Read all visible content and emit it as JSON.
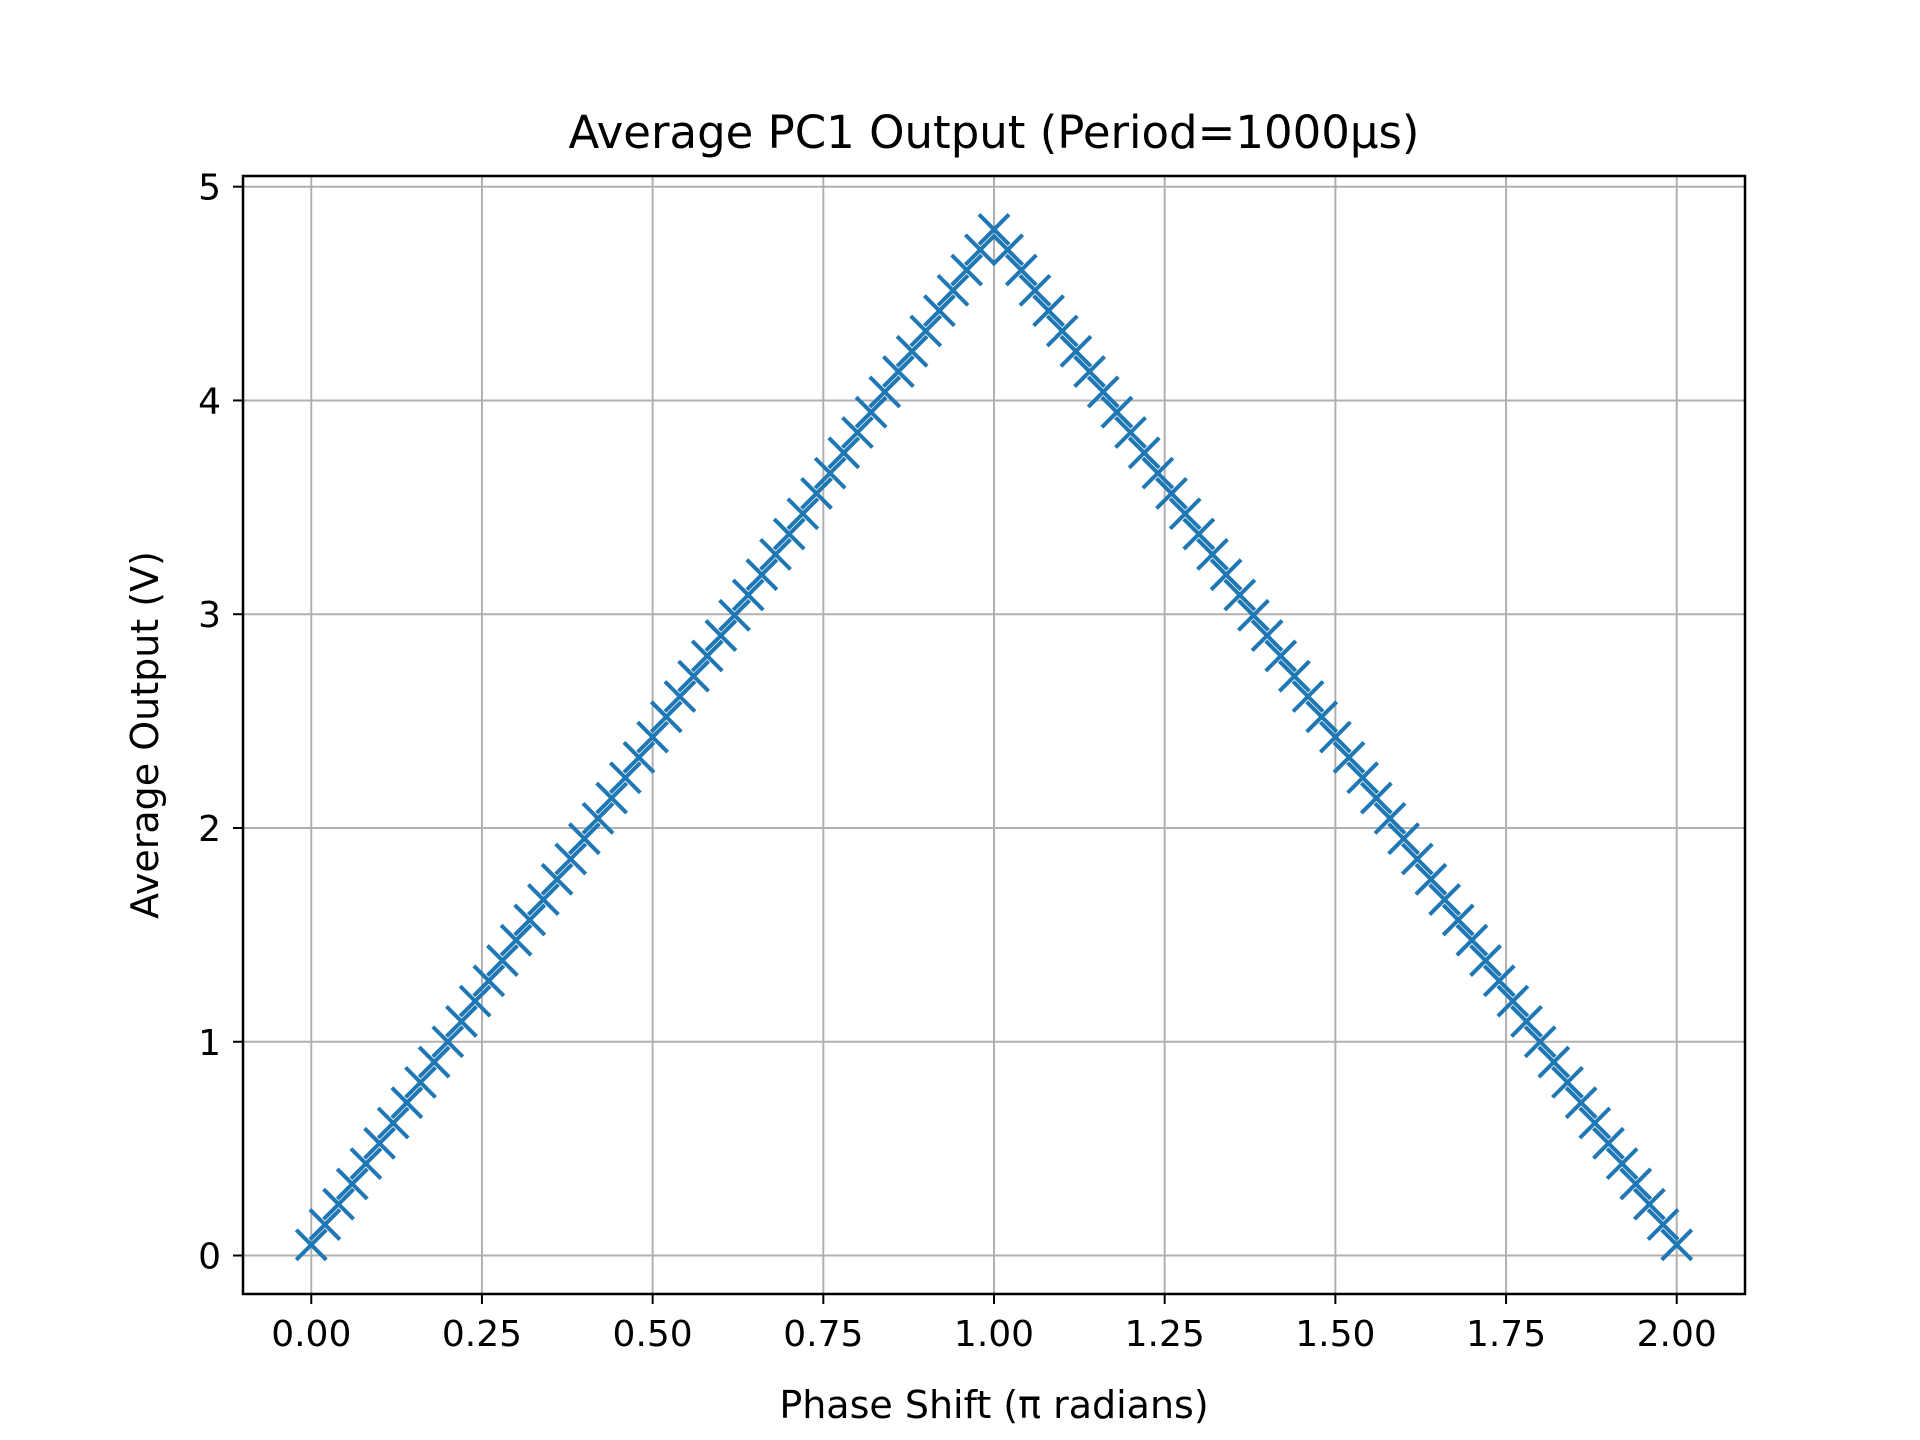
{
  "chart_data": {
    "type": "scatter",
    "title": "Average PC1 Output (Period=1000μs)",
    "xlabel": "Phase Shift (π radians)",
    "ylabel": "Average Output (V)",
    "xlim": [
      -0.1,
      2.1
    ],
    "ylim": [
      -0.18,
      5.05
    ],
    "xticks": [
      0.0,
      0.25,
      0.5,
      0.75,
      1.0,
      1.25,
      1.5,
      1.75,
      2.0
    ],
    "xtick_labels": [
      "0.00",
      "0.25",
      "0.50",
      "0.75",
      "1.00",
      "1.25",
      "1.50",
      "1.75",
      "2.00"
    ],
    "yticks": [
      0,
      1,
      2,
      3,
      4,
      5
    ],
    "ytick_labels": [
      "0",
      "1",
      "2",
      "3",
      "4",
      "5"
    ],
    "grid": true,
    "marker": "x",
    "color": "#1f77b4",
    "series": [
      {
        "x": [
          0.0,
          0.02,
          0.04,
          0.06,
          0.08,
          0.1,
          0.12,
          0.14,
          0.16,
          0.18,
          0.2,
          0.22,
          0.24,
          0.26,
          0.28,
          0.3,
          0.32,
          0.34,
          0.36,
          0.38,
          0.4,
          0.42,
          0.44,
          0.46,
          0.48,
          0.5,
          0.52,
          0.54,
          0.56,
          0.58,
          0.6,
          0.62,
          0.64,
          0.66,
          0.68,
          0.7,
          0.72,
          0.74,
          0.76,
          0.78,
          0.8,
          0.82,
          0.84,
          0.86,
          0.88,
          0.9,
          0.92,
          0.94,
          0.96,
          0.98,
          1.0,
          1.02,
          1.04,
          1.06,
          1.08,
          1.1,
          1.12,
          1.14,
          1.16,
          1.18,
          1.2,
          1.22,
          1.24,
          1.26,
          1.28,
          1.3,
          1.32,
          1.34,
          1.36,
          1.38,
          1.4,
          1.42,
          1.44,
          1.46,
          1.48,
          1.5,
          1.52,
          1.54,
          1.56,
          1.58,
          1.6,
          1.62,
          1.64,
          1.66,
          1.68,
          1.7,
          1.72,
          1.74,
          1.76,
          1.78,
          1.8,
          1.82,
          1.84,
          1.86,
          1.88,
          1.9,
          1.92,
          1.94,
          1.96,
          1.98,
          2.0
        ],
        "y": [
          0.05,
          0.145,
          0.24,
          0.335,
          0.43,
          0.525,
          0.62,
          0.715,
          0.81,
          0.905,
          1.0,
          1.095,
          1.19,
          1.285,
          1.38,
          1.475,
          1.57,
          1.665,
          1.76,
          1.855,
          1.95,
          2.045,
          2.14,
          2.235,
          2.33,
          2.425,
          2.52,
          2.615,
          2.71,
          2.805,
          2.9,
          2.995,
          3.09,
          3.185,
          3.28,
          3.375,
          3.47,
          3.565,
          3.66,
          3.755,
          3.85,
          3.945,
          4.04,
          4.135,
          4.23,
          4.325,
          4.42,
          4.515,
          4.61,
          4.705,
          4.8,
          4.705,
          4.61,
          4.515,
          4.42,
          4.325,
          4.23,
          4.135,
          4.04,
          3.945,
          3.85,
          3.755,
          3.66,
          3.565,
          3.47,
          3.375,
          3.28,
          3.185,
          3.09,
          2.995,
          2.9,
          2.805,
          2.71,
          2.615,
          2.52,
          2.425,
          2.33,
          2.235,
          2.14,
          2.045,
          1.95,
          1.855,
          1.76,
          1.665,
          1.57,
          1.475,
          1.38,
          1.285,
          1.19,
          1.095,
          1.0,
          0.905,
          0.81,
          0.715,
          0.62,
          0.525,
          0.43,
          0.335,
          0.24,
          0.145,
          0.05
        ]
      }
    ]
  }
}
